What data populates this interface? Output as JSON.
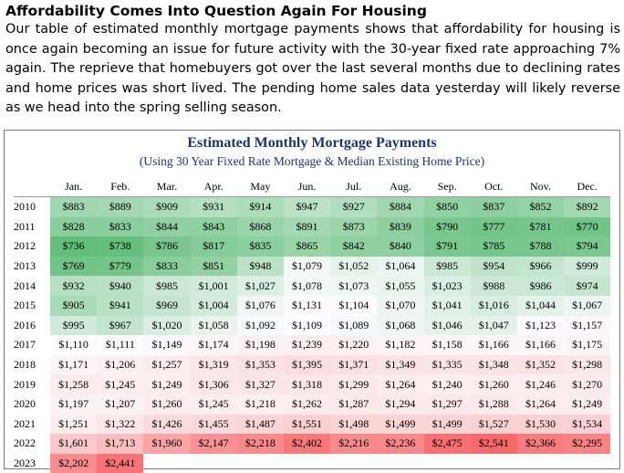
{
  "article": {
    "heading": "Affordability Comes Into Question Again For Housing",
    "paragraph": "Our table of estimated monthly mortgage payments shows that affordability for housing is once again becoming an issue for future activity with the 30-year fixed rate approaching 7% again. The reprieve that homebuyers got over the last several months due to declining rates and home prices was short lived. The pending home sales data yesterday will likely reverse as we head into the spring selling season."
  },
  "table": {
    "title": "Estimated Monthly Mortgage Payments",
    "subtitle": "(Using 30 Year Fixed Rate Mortgage & Median Existing Home Price)",
    "months": [
      "Jan.",
      "Feb.",
      "Mar.",
      "Apr.",
      "May",
      "Jun.",
      "Jul.",
      "Aug.",
      "Sep.",
      "Oct.",
      "Nov.",
      "Dec."
    ],
    "rows": [
      {
        "year": "2010",
        "values": [
          "$883",
          "$889",
          "$909",
          "$931",
          "$914",
          "$947",
          "$927",
          "$884",
          "$850",
          "$837",
          "$852",
          "$892"
        ]
      },
      {
        "year": "2011",
        "values": [
          "$828",
          "$833",
          "$844",
          "$843",
          "$868",
          "$891",
          "$873",
          "$839",
          "$790",
          "$777",
          "$781",
          "$770"
        ]
      },
      {
        "year": "2012",
        "values": [
          "$736",
          "$738",
          "$786",
          "$817",
          "$835",
          "$865",
          "$842",
          "$840",
          "$791",
          "$785",
          "$788",
          "$794"
        ]
      },
      {
        "year": "2013",
        "values": [
          "$769",
          "$779",
          "$833",
          "$851",
          "$948",
          "$1,079",
          "$1,052",
          "$1,064",
          "$985",
          "$954",
          "$966",
          "$999"
        ]
      },
      {
        "year": "2014",
        "values": [
          "$932",
          "$940",
          "$985",
          "$1,001",
          "$1,027",
          "$1,078",
          "$1,073",
          "$1,055",
          "$1,023",
          "$988",
          "$986",
          "$974"
        ]
      },
      {
        "year": "2015",
        "values": [
          "$905",
          "$941",
          "$969",
          "$1,004",
          "$1,076",
          "$1,131",
          "$1,104",
          "$1,070",
          "$1,041",
          "$1,016",
          "$1,044",
          "$1,067"
        ]
      },
      {
        "year": "2016",
        "values": [
          "$995",
          "$967",
          "$1,020",
          "$1,058",
          "$1,092",
          "$1,109",
          "$1,089",
          "$1,068",
          "$1,046",
          "$1,047",
          "$1,123",
          "$1,157"
        ]
      },
      {
        "year": "2017",
        "values": [
          "$1,110",
          "$1,111",
          "$1,149",
          "$1,174",
          "$1,198",
          "$1,239",
          "$1,220",
          "$1,182",
          "$1,158",
          "$1,166",
          "$1,166",
          "$1,175"
        ]
      },
      {
        "year": "2018",
        "values": [
          "$1,171",
          "$1,206",
          "$1,257",
          "$1,319",
          "$1,353",
          "$1,395",
          "$1,371",
          "$1,349",
          "$1,335",
          "$1,348",
          "$1,352",
          "$1,298"
        ]
      },
      {
        "year": "2019",
        "values": [
          "$1,258",
          "$1,245",
          "$1,249",
          "$1,306",
          "$1,327",
          "$1,318",
          "$1,299",
          "$1,264",
          "$1,240",
          "$1,260",
          "$1,246",
          "$1,270"
        ]
      },
      {
        "year": "2020",
        "values": [
          "$1,197",
          "$1,207",
          "$1,260",
          "$1,245",
          "$1,218",
          "$1,262",
          "$1,287",
          "$1,294",
          "$1,297",
          "$1,288",
          "$1,264",
          "$1,249"
        ]
      },
      {
        "year": "2021",
        "values": [
          "$1,251",
          "$1,322",
          "$1,426",
          "$1,455",
          "$1,487",
          "$1,551",
          "$1,498",
          "$1,499",
          "$1,499",
          "$1,527",
          "$1,530",
          "$1,534"
        ]
      },
      {
        "year": "2022",
        "values": [
          "$1,601",
          "$1,713",
          "$1,960",
          "$2,147",
          "$2,218",
          "$2,402",
          "$2,216",
          "$2,236",
          "$2,475",
          "$2,541",
          "$2,366",
          "$2,295"
        ]
      },
      {
        "year": "2023",
        "values": [
          "$2,202",
          "$2,441"
        ]
      }
    ]
  },
  "colors": {
    "scale_low": "#63be7b",
    "scale_mid": "#fcfcff",
    "scale_high": "#f8696b",
    "title_color": "#1f3564"
  }
}
